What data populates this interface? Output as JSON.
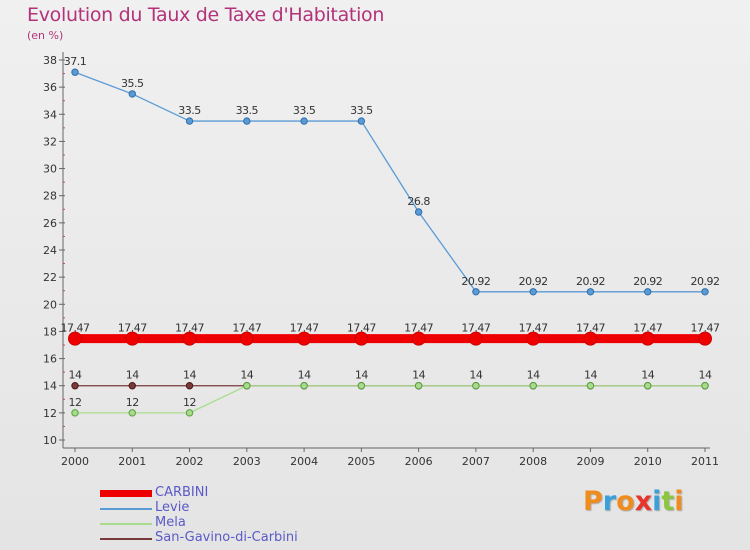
{
  "chart_data": {
    "type": "line",
    "title": "Evolution du Taux de Taxe d'Habitation",
    "subtitle": "(en %)",
    "x": [
      "2000",
      "2001",
      "2002",
      "2003",
      "2004",
      "2005",
      "2006",
      "2007",
      "2008",
      "2009",
      "2010",
      "2011"
    ],
    "ylim": [
      10,
      38
    ],
    "yticks": [
      10,
      12,
      14,
      16,
      18,
      20,
      22,
      24,
      26,
      28,
      30,
      32,
      34,
      36,
      38
    ],
    "grid": false,
    "legend_position": "bottom-left",
    "series": [
      {
        "name": "CARBINI",
        "color": "#ee0000",
        "values": [
          17.47,
          17.47,
          17.47,
          17.47,
          17.47,
          17.47,
          17.47,
          17.47,
          17.47,
          17.47,
          17.47,
          17.47
        ],
        "labels": [
          "17.47",
          "17.47",
          "17.47",
          "17.47",
          "17.47",
          "17.47",
          "17.47",
          "17.47",
          "17.47",
          "17.47",
          "17.47",
          "17.47"
        ]
      },
      {
        "name": "Levie",
        "color": "#5b9bd5",
        "values": [
          37.1,
          35.5,
          33.5,
          33.5,
          33.5,
          33.5,
          26.8,
          20.92,
          20.92,
          20.92,
          20.92,
          20.92
        ],
        "labels": [
          "37.1",
          "35.5",
          "33.5",
          "33.5",
          "33.5",
          "33.5",
          "26.8",
          "20.92",
          "20.92",
          "20.92",
          "20.92",
          "20.92"
        ]
      },
      {
        "name": "Mela",
        "color": "#a8dc8c",
        "values": [
          12,
          12,
          12,
          14,
          14,
          14,
          14,
          14,
          14,
          14,
          14,
          14
        ],
        "labels": [
          "12",
          "12",
          "12"
        ]
      },
      {
        "name": "San-Gavino-di-Carbini",
        "color": "#7a3a3a",
        "values": [
          14,
          14,
          14,
          14,
          14,
          14,
          14,
          14,
          14,
          14,
          14,
          14
        ],
        "labels": [
          "14",
          "14",
          "14",
          "14",
          "14",
          "14",
          "14",
          "14",
          "14",
          "14",
          "14",
          "14"
        ]
      }
    ]
  },
  "logo": {
    "letters": [
      "P",
      "r",
      "o",
      "x",
      "i",
      "t",
      "i"
    ],
    "colors": [
      "#f08c1e",
      "#3aa0d8",
      "#f08c1e",
      "#e8342a",
      "#3aa0d8",
      "#8cc63e",
      "#f08c1e"
    ]
  }
}
